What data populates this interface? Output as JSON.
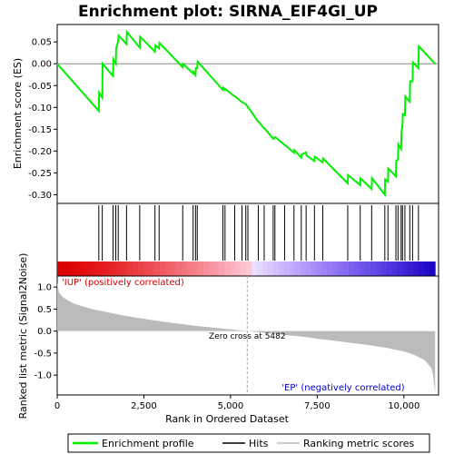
{
  "chart_data": {
    "type": "line",
    "title": "Enrichment plot: SIRNA_EIF4GI_UP",
    "x_label": "Rank in Ordered Dataset",
    "x_ticks": [
      "0",
      "2,500",
      "5,000",
      "7,500",
      "10,000"
    ],
    "x_range": [
      0,
      11000
    ],
    "top_panel": {
      "ylabel": "Enrichment score (ES)",
      "ylim": [
        -0.32,
        0.09
      ],
      "y_ticks": [
        "0.05",
        "0.00",
        "-0.05",
        "-0.10",
        "-0.15",
        "-0.20",
        "-0.25",
        "-0.30"
      ],
      "series": [
        {
          "name": "Enrichment profile",
          "color": "#00ee00",
          "x": [
            0,
            1200,
            1210,
            1300,
            1310,
            1610,
            1620,
            1690,
            1700,
            1760,
            1770,
            2000,
            2010,
            2380,
            2390,
            2820,
            2830,
            2940,
            2950,
            3620,
            3630,
            3920,
            3930,
            3990,
            4000,
            4040,
            4050,
            4780,
            4790,
            4840,
            4850,
            5120,
            5130,
            5330,
            5340,
            5440,
            5450,
            5500,
            5510,
            5800,
            5810,
            5970,
            5980,
            6230,
            6240,
            6280,
            6290,
            6560,
            6570,
            6830,
            6840,
            7040,
            7050,
            7180,
            7190,
            7420,
            7430,
            7660,
            7670,
            8380,
            8390,
            8740,
            8750,
            9070,
            9080,
            9450,
            9460,
            9540,
            9550,
            9770,
            9780,
            9830,
            9840,
            9920,
            9930,
            9960,
            9970,
            10030,
            10040,
            10170,
            10180,
            10250,
            10260,
            10420,
            10430,
            10900
          ],
          "y": [
            0.0,
            -0.108,
            -0.066,
            -0.078,
            0.0,
            -0.028,
            0.01,
            0.0,
            0.035,
            0.052,
            0.065,
            0.045,
            0.073,
            0.037,
            0.062,
            0.028,
            0.042,
            0.035,
            0.048,
            -0.008,
            0.0,
            -0.022,
            -0.018,
            -0.026,
            -0.01,
            -0.01,
            0.005,
            -0.06,
            -0.055,
            -0.06,
            -0.058,
            -0.075,
            -0.075,
            -0.088,
            -0.088,
            -0.093,
            -0.093,
            -0.1,
            -0.1,
            -0.133,
            -0.133,
            -0.148,
            -0.148,
            -0.172,
            -0.172,
            -0.168,
            -0.168,
            -0.186,
            -0.186,
            -0.204,
            -0.198,
            -0.215,
            -0.208,
            -0.203,
            -0.21,
            -0.223,
            -0.213,
            -0.226,
            -0.217,
            -0.274,
            -0.255,
            -0.278,
            -0.263,
            -0.287,
            -0.262,
            -0.3,
            -0.265,
            -0.27,
            -0.24,
            -0.258,
            -0.222,
            -0.22,
            -0.185,
            -0.195,
            -0.158,
            -0.14,
            -0.115,
            -0.118,
            -0.075,
            -0.087,
            -0.04,
            -0.04,
            0.003,
            -0.01,
            0.04,
            0.0
          ]
        }
      ]
    },
    "hits": {
      "name": "Hits",
      "x": [
        1200,
        1300,
        1610,
        1690,
        1760,
        2000,
        2380,
        2820,
        2940,
        3620,
        3920,
        3990,
        4040,
        4780,
        4840,
        5120,
        5330,
        5440,
        5500,
        5800,
        5970,
        6230,
        6280,
        6560,
        6830,
        7040,
        7180,
        7420,
        7660,
        8380,
        8740,
        9070,
        9450,
        9540,
        9770,
        9830,
        9920,
        9960,
        10030,
        10170,
        10250,
        10420
      ]
    },
    "rank_bar": {
      "colors": [
        "#d40000",
        "#ffbbbb",
        "#ffcce6",
        "#e8e0ff",
        "#b8b8ff",
        "#4444dd",
        "#2200aa"
      ],
      "positive_label": "'IUP' (positively correlated)",
      "negative_label": "'EP' (negatively correlated)",
      "zero_cross_label": "Zero cross at 5482"
    },
    "bottom_panel": {
      "ylabel": "Ranked list metric (Signal2Noise)",
      "ylim": [
        -1.45,
        1.25
      ],
      "y_ticks": [
        "1.0",
        "0.5",
        "0.0",
        "-0.5",
        "-1.0"
      ],
      "series": [
        {
          "name": "Ranking metric scores",
          "color": "#bbbbbb",
          "x": [
            0,
            50,
            150,
            300,
            500,
            1000,
            2000,
            3000,
            4000,
            5000,
            5482,
            6000,
            7000,
            8000,
            9000,
            9500,
            10000,
            10300,
            10600,
            10800,
            10850,
            10900
          ],
          "y": [
            1.1,
            0.88,
            0.78,
            0.7,
            0.62,
            0.5,
            0.34,
            0.22,
            0.12,
            0.04,
            0.0,
            -0.04,
            -0.12,
            -0.22,
            -0.32,
            -0.38,
            -0.46,
            -0.54,
            -0.66,
            -0.85,
            -1.05,
            -1.4
          ]
        }
      ]
    },
    "legend": [
      {
        "label": "Enrichment profile",
        "color": "#00ee00"
      },
      {
        "label": "Hits",
        "color": "#000000"
      },
      {
        "label": "Ranking metric scores",
        "color": "#bbbbbb"
      }
    ]
  }
}
